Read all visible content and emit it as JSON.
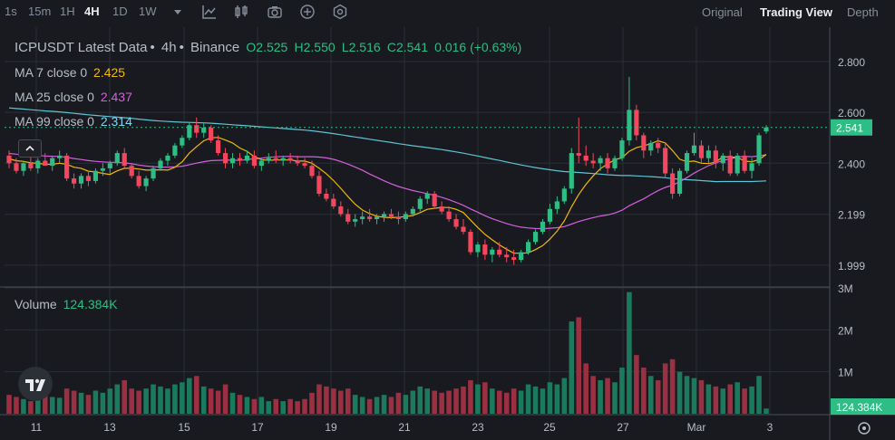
{
  "toolbar": {
    "intervals": [
      "1s",
      "15m",
      "1H",
      "4H",
      "1D",
      "1W"
    ],
    "active_interval": "4H",
    "views": [
      "Original",
      "Trading View",
      "Depth"
    ],
    "active_view": "Trading View"
  },
  "legend": {
    "title": "ICPUSDT Latest Data",
    "interval": "4h",
    "exchange": "Binance",
    "open": "O2.525",
    "high": "H2.550",
    "low": "L2.516",
    "close": "C2.541",
    "change": "0.016 (+0.63%)",
    "ma7_label": "MA 7 close 0",
    "ma7_value": "2.425",
    "ma25_label": "MA 25 close 0",
    "ma25_value": "2.437",
    "ma99_label": "MA 99 close 0",
    "ma99_value": "2.314",
    "volume_label": "Volume",
    "volume_value": "124.384K"
  },
  "chart_data": {
    "type": "candlestick",
    "symbol": "ICPUSDT",
    "interval": "4h",
    "price_ticks": [
      "2.800",
      "2.600",
      "2.400",
      "2.199",
      "1.999"
    ],
    "volume_ticks": [
      "3M",
      "2M",
      "1M"
    ],
    "date_ticks": [
      "11",
      "13",
      "15",
      "17",
      "19",
      "21",
      "23",
      "25",
      "27",
      "Mar",
      "3"
    ],
    "last_price_label": "2.541",
    "last_volume_label": "124.384K",
    "ylim_price": [
      1.92,
      2.9
    ],
    "ylim_volume": [
      0,
      3.0
    ],
    "candles": [
      [
        2.43,
        2.45,
        2.38,
        2.4,
        0.45
      ],
      [
        2.4,
        2.42,
        2.36,
        2.37,
        0.4
      ],
      [
        2.37,
        2.41,
        2.35,
        2.4,
        0.35
      ],
      [
        2.4,
        2.43,
        2.37,
        2.38,
        0.3
      ],
      [
        2.38,
        2.42,
        2.36,
        2.41,
        0.5
      ],
      [
        2.41,
        2.44,
        2.39,
        2.39,
        0.45
      ],
      [
        2.39,
        2.43,
        2.37,
        2.42,
        0.4
      ],
      [
        2.42,
        2.45,
        2.4,
        2.43,
        0.38
      ],
      [
        2.43,
        2.44,
        2.33,
        2.34,
        0.6
      ],
      [
        2.34,
        2.36,
        2.3,
        2.32,
        0.55
      ],
      [
        2.32,
        2.36,
        2.3,
        2.35,
        0.5
      ],
      [
        2.35,
        2.37,
        2.31,
        2.33,
        0.45
      ],
      [
        2.33,
        2.38,
        2.32,
        2.37,
        0.55
      ],
      [
        2.37,
        2.4,
        2.35,
        2.38,
        0.5
      ],
      [
        2.38,
        2.41,
        2.36,
        2.4,
        0.6
      ],
      [
        2.4,
        2.45,
        2.39,
        2.44,
        0.7
      ],
      [
        2.44,
        2.46,
        2.38,
        2.39,
        0.8
      ],
      [
        2.39,
        2.4,
        2.34,
        2.35,
        0.6
      ],
      [
        2.35,
        2.37,
        2.3,
        2.31,
        0.55
      ],
      [
        2.31,
        2.35,
        2.29,
        2.34,
        0.6
      ],
      [
        2.34,
        2.39,
        2.33,
        2.38,
        0.7
      ],
      [
        2.38,
        2.42,
        2.37,
        2.41,
        0.65
      ],
      [
        2.41,
        2.44,
        2.39,
        2.43,
        0.6
      ],
      [
        2.43,
        2.48,
        2.42,
        2.47,
        0.7
      ],
      [
        2.47,
        2.51,
        2.46,
        2.5,
        0.75
      ],
      [
        2.5,
        2.56,
        2.49,
        2.55,
        0.85
      ],
      [
        2.55,
        2.58,
        2.5,
        2.52,
        0.9
      ],
      [
        2.52,
        2.56,
        2.5,
        2.54,
        0.65
      ],
      [
        2.54,
        2.55,
        2.48,
        2.49,
        0.6
      ],
      [
        2.49,
        2.51,
        2.43,
        2.44,
        0.55
      ],
      [
        2.44,
        2.46,
        2.38,
        2.4,
        0.7
      ],
      [
        2.4,
        2.44,
        2.38,
        2.42,
        0.5
      ],
      [
        2.42,
        2.44,
        2.39,
        2.41,
        0.45
      ],
      [
        2.41,
        2.45,
        2.4,
        2.43,
        0.4
      ],
      [
        2.43,
        2.45,
        2.38,
        2.39,
        0.35
      ],
      [
        2.39,
        2.42,
        2.37,
        2.41,
        0.4
      ],
      [
        2.41,
        2.44,
        2.4,
        2.42,
        0.3
      ],
      [
        2.42,
        2.45,
        2.4,
        2.41,
        0.35
      ],
      [
        2.41,
        2.43,
        2.39,
        2.42,
        0.3
      ],
      [
        2.42,
        2.44,
        2.4,
        2.41,
        0.35
      ],
      [
        2.41,
        2.43,
        2.39,
        2.4,
        0.3
      ],
      [
        2.4,
        2.42,
        2.38,
        2.39,
        0.35
      ],
      [
        2.39,
        2.41,
        2.34,
        2.35,
        0.5
      ],
      [
        2.35,
        2.37,
        2.27,
        2.28,
        0.7
      ],
      [
        2.28,
        2.3,
        2.25,
        2.26,
        0.65
      ],
      [
        2.26,
        2.28,
        2.22,
        2.23,
        0.6
      ],
      [
        2.23,
        2.25,
        2.19,
        2.2,
        0.55
      ],
      [
        2.2,
        2.22,
        2.16,
        2.17,
        0.6
      ],
      [
        2.17,
        2.2,
        2.15,
        2.18,
        0.45
      ],
      [
        2.18,
        2.21,
        2.16,
        2.19,
        0.4
      ],
      [
        2.19,
        2.22,
        2.17,
        2.18,
        0.35
      ],
      [
        2.18,
        2.2,
        2.16,
        2.19,
        0.4
      ],
      [
        2.19,
        2.21,
        2.17,
        2.2,
        0.45
      ],
      [
        2.2,
        2.22,
        2.18,
        2.19,
        0.4
      ],
      [
        2.19,
        2.21,
        2.16,
        2.18,
        0.5
      ],
      [
        2.18,
        2.21,
        2.17,
        2.2,
        0.45
      ],
      [
        2.2,
        2.23,
        2.19,
        2.22,
        0.55
      ],
      [
        2.22,
        2.27,
        2.21,
        2.26,
        0.65
      ],
      [
        2.26,
        2.29,
        2.24,
        2.28,
        0.6
      ],
      [
        2.28,
        2.29,
        2.22,
        2.23,
        0.55
      ],
      [
        2.23,
        2.25,
        2.2,
        2.21,
        0.5
      ],
      [
        2.21,
        2.23,
        2.17,
        2.18,
        0.55
      ],
      [
        2.18,
        2.2,
        2.14,
        2.15,
        0.6
      ],
      [
        2.15,
        2.18,
        2.12,
        2.13,
        0.65
      ],
      [
        2.13,
        2.14,
        2.04,
        2.05,
        0.8
      ],
      [
        2.05,
        2.09,
        2.03,
        2.08,
        0.7
      ],
      [
        2.08,
        2.1,
        2.02,
        2.04,
        0.75
      ],
      [
        2.04,
        2.07,
        2.01,
        2.06,
        0.6
      ],
      [
        2.06,
        2.09,
        2.03,
        2.04,
        0.55
      ],
      [
        2.04,
        2.07,
        2.01,
        2.03,
        0.5
      ],
      [
        2.03,
        2.06,
        2.0,
        2.02,
        0.6
      ],
      [
        2.02,
        2.06,
        2.01,
        2.05,
        0.55
      ],
      [
        2.05,
        2.1,
        2.04,
        2.09,
        0.7
      ],
      [
        2.09,
        2.14,
        2.08,
        2.13,
        0.65
      ],
      [
        2.13,
        2.18,
        2.12,
        2.17,
        0.6
      ],
      [
        2.17,
        2.24,
        2.16,
        2.22,
        0.75
      ],
      [
        2.22,
        2.27,
        2.2,
        2.25,
        0.7
      ],
      [
        2.25,
        2.31,
        2.24,
        2.3,
        0.85
      ],
      [
        2.3,
        2.46,
        2.28,
        2.44,
        2.2
      ],
      [
        2.44,
        2.58,
        2.4,
        2.43,
        2.3
      ],
      [
        2.43,
        2.47,
        2.39,
        2.41,
        1.2
      ],
      [
        2.41,
        2.44,
        2.38,
        2.4,
        0.9
      ],
      [
        2.4,
        2.43,
        2.37,
        2.42,
        0.8
      ],
      [
        2.42,
        2.44,
        2.36,
        2.38,
        0.85
      ],
      [
        2.38,
        2.43,
        2.37,
        2.42,
        0.75
      ],
      [
        2.42,
        2.5,
        2.41,
        2.49,
        1.1
      ],
      [
        2.49,
        2.74,
        2.47,
        2.61,
        2.9
      ],
      [
        2.61,
        2.63,
        2.49,
        2.51,
        1.4
      ],
      [
        2.51,
        2.52,
        2.42,
        2.45,
        1.1
      ],
      [
        2.45,
        2.49,
        2.43,
        2.48,
        0.9
      ],
      [
        2.48,
        2.5,
        2.44,
        2.46,
        0.8
      ],
      [
        2.46,
        2.48,
        2.34,
        2.36,
        1.2
      ],
      [
        2.36,
        2.38,
        2.26,
        2.28,
        1.3
      ],
      [
        2.28,
        2.38,
        2.27,
        2.37,
        1.0
      ],
      [
        2.37,
        2.45,
        2.36,
        2.44,
        0.9
      ],
      [
        2.44,
        2.52,
        2.43,
        2.47,
        0.85
      ],
      [
        2.47,
        2.49,
        2.4,
        2.42,
        0.8
      ],
      [
        2.42,
        2.47,
        2.4,
        2.45,
        0.7
      ],
      [
        2.45,
        2.47,
        2.38,
        2.4,
        0.65
      ],
      [
        2.4,
        2.44,
        2.37,
        2.43,
        0.6
      ],
      [
        2.43,
        2.45,
        2.35,
        2.36,
        0.7
      ],
      [
        2.36,
        2.44,
        2.35,
        2.43,
        0.75
      ],
      [
        2.43,
        2.45,
        2.36,
        2.37,
        0.6
      ],
      [
        2.37,
        2.42,
        2.34,
        2.4,
        0.65
      ],
      [
        2.4,
        2.52,
        2.39,
        2.51,
        0.9
      ],
      [
        2.525,
        2.55,
        2.516,
        2.541,
        0.124
      ]
    ],
    "ma7_end": 2.425,
    "ma25_end": 2.437,
    "ma99_end": 2.314
  },
  "colors": {
    "up": "#2ebd85",
    "down": "#f6465d",
    "up_volume": "#1b7a5c",
    "down_volume": "#9a3041",
    "ma7": "#f0b90b",
    "ma25": "#d65fde",
    "ma99": "#5fc4d6",
    "grid": "#2b2f36",
    "background": "#181a20"
  }
}
